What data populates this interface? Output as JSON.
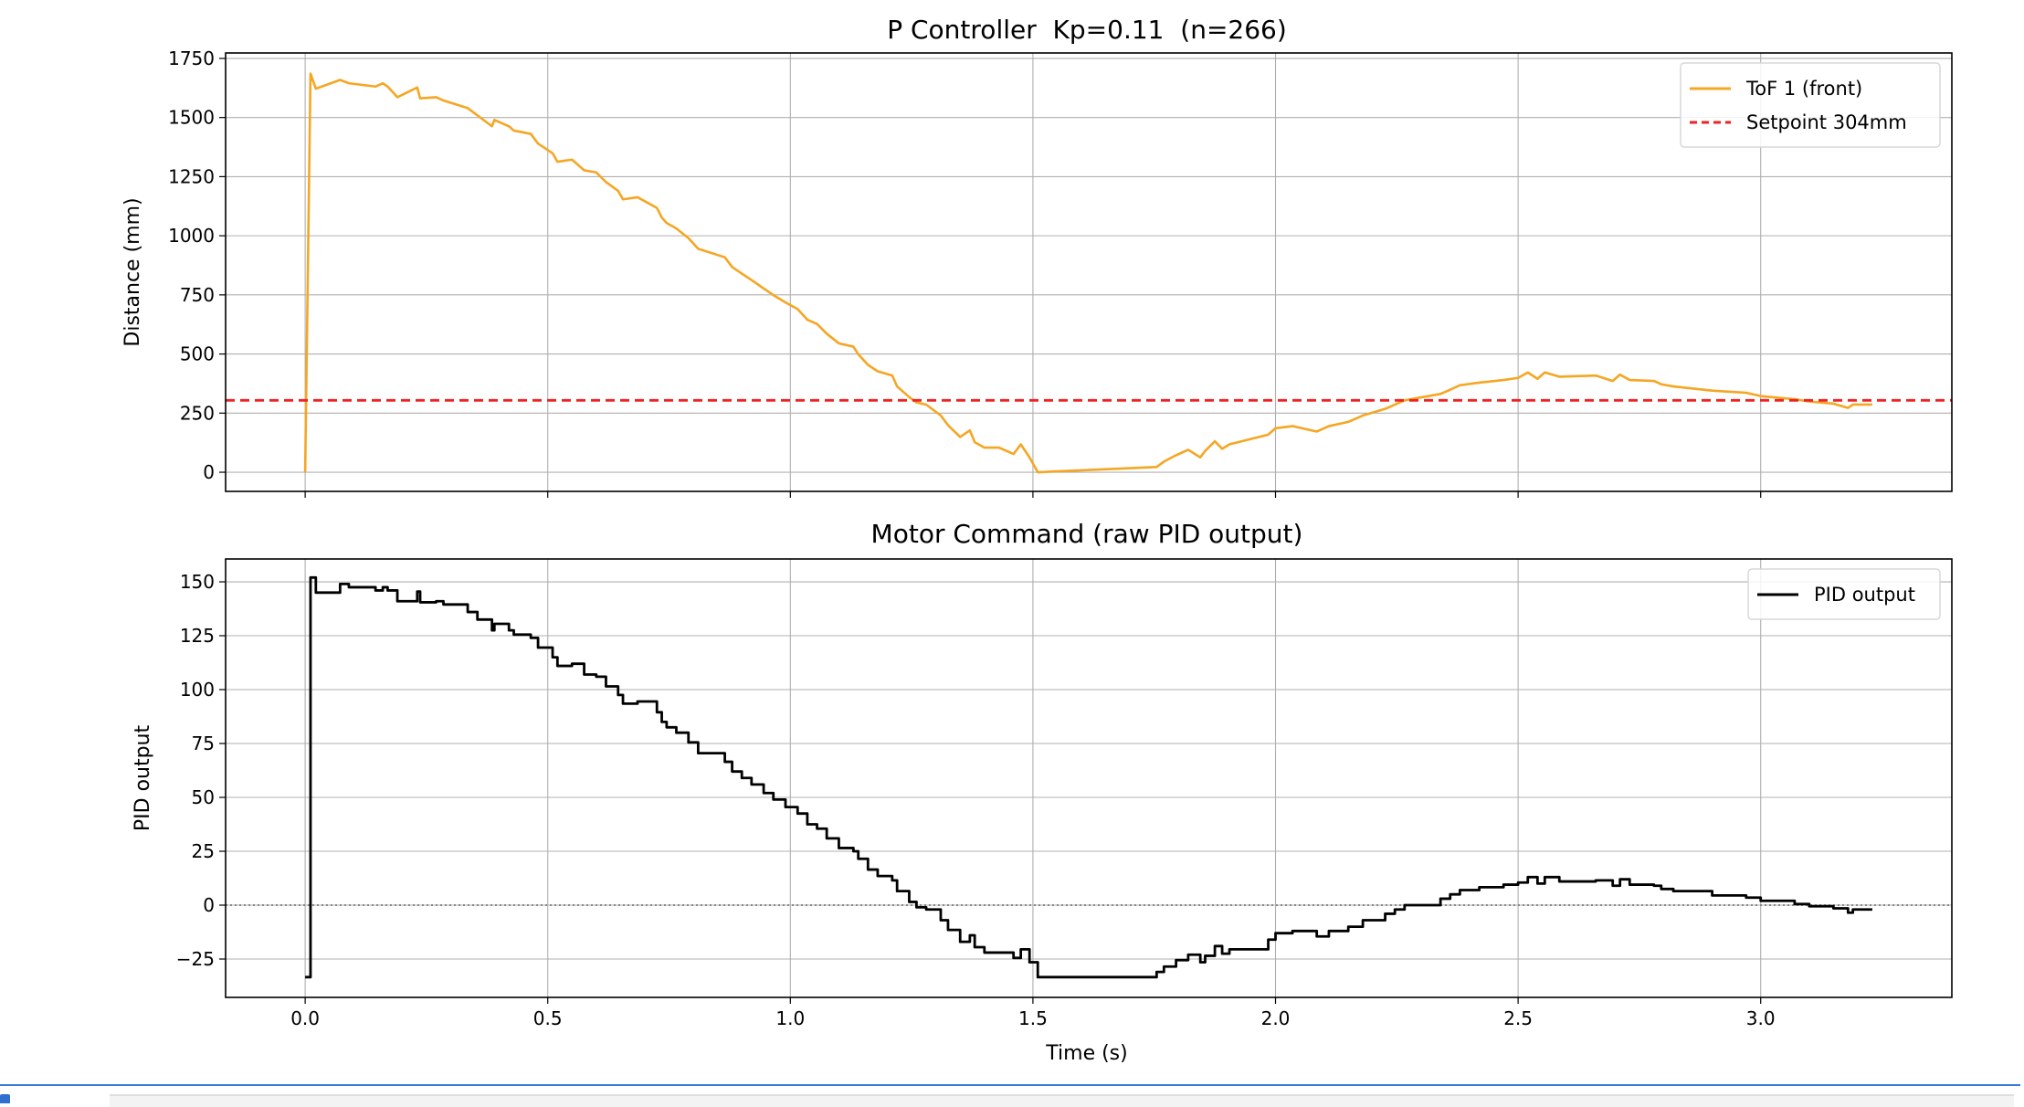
{
  "chart_data": [
    {
      "type": "line",
      "title": "P Controller  Kp=0.11  (n=266)",
      "xlabel": "",
      "ylabel": "Distance (mm)",
      "xlim": [
        -0.164,
        3.394
      ],
      "ylim": [
        -81,
        1773
      ],
      "yticks": [
        0,
        250,
        500,
        750,
        1000,
        1250,
        1500,
        1750
      ],
      "xticks": [
        0.0,
        0.5,
        1.0,
        1.5,
        2.0,
        2.5,
        3.0
      ],
      "show_xtick_labels": false,
      "grid": true,
      "legend": "top-right",
      "series": [
        {
          "name": "ToF 1 (front)",
          "color": "#f5a623",
          "style": "solid",
          "x": [
            0,
            0.011,
            0.022,
            0.072,
            0.09,
            0.145,
            0.16,
            0.17,
            0.19,
            0.231,
            0.237,
            0.27,
            0.285,
            0.335,
            0.355,
            0.385,
            0.39,
            0.42,
            0.43,
            0.465,
            0.48,
            0.51,
            0.52,
            0.55,
            0.575,
            0.6,
            0.62,
            0.645,
            0.655,
            0.685,
            0.725,
            0.735,
            0.745,
            0.765,
            0.79,
            0.81,
            0.865,
            0.88,
            0.9,
            0.92,
            0.945,
            0.965,
            0.99,
            1.015,
            1.035,
            1.055,
            1.075,
            1.1,
            1.13,
            1.14,
            1.16,
            1.18,
            1.21,
            1.22,
            1.245,
            1.26,
            1.28,
            1.31,
            1.325,
            1.35,
            1.37,
            1.38,
            1.4,
            1.43,
            1.46,
            1.475,
            1.493,
            1.51,
            1.755,
            1.77,
            1.795,
            1.82,
            1.845,
            1.855,
            1.875,
            1.89,
            1.905,
            1.985,
            2.0,
            2.035,
            2.085,
            2.11,
            2.15,
            2.18,
            2.226,
            2.246,
            2.266,
            2.34,
            2.36,
            2.38,
            2.42,
            2.47,
            2.5,
            2.52,
            2.54,
            2.555,
            2.585,
            2.66,
            2.695,
            2.71,
            2.73,
            2.78,
            2.795,
            2.82,
            2.9,
            2.97,
            3.0,
            3.07,
            3.1,
            3.15,
            3.18,
            3.19,
            3.23
          ],
          "y": [
            0,
            1686,
            1622,
            1659,
            1645,
            1631,
            1645,
            1631,
            1586,
            1627,
            1581,
            1586,
            1572,
            1540,
            1509,
            1463,
            1490,
            1463,
            1445,
            1431,
            1390,
            1349,
            1313,
            1322,
            1277,
            1268,
            1227,
            1190,
            1154,
            1163,
            1118,
            1077,
            1054,
            1031,
            990,
            945,
            909,
            868,
            840,
            813,
            777,
            749,
            718,
            690,
            645,
            627,
            586,
            545,
            531,
            499,
            454,
            427,
            409,
            363,
            318,
            295,
            286,
            240,
            199,
            149,
            177,
            127,
            104,
            104,
            77,
            118,
            63,
            0,
            22,
            45,
            72,
            95,
            63,
            90,
            131,
            99,
            118,
            159,
            186,
            195,
            172,
            195,
            213,
            240,
            268,
            286,
            304,
            331,
            349,
            368,
            379,
            390,
            399,
            422,
            395,
            422,
            404,
            409,
            386,
            413,
            390,
            386,
            372,
            363,
            345,
            336,
            322,
            309,
            299,
            290,
            272,
            286,
            286
          ]
        },
        {
          "name": "Setpoint 304mm",
          "color": "#ee2222",
          "style": "dashed",
          "y_constant": 304
        }
      ]
    },
    {
      "type": "line",
      "title": "Motor Command (raw PID output)",
      "xlabel": "Time (s)",
      "ylabel": "PID output",
      "xlim": [
        -0.164,
        3.394
      ],
      "ylim": [
        -42.8,
        160.6
      ],
      "yticks": [
        -25,
        0,
        25,
        50,
        75,
        100,
        125,
        150
      ],
      "xticks": [
        0.0,
        0.5,
        1.0,
        1.5,
        2.0,
        2.5,
        3.0
      ],
      "xtick_labels": [
        "0.0",
        "0.5",
        "1.0",
        "1.5",
        "2.0",
        "2.5",
        "3.0"
      ],
      "grid": true,
      "legend": "top-right",
      "zero_reference_line": {
        "y": 0,
        "color": "#888888",
        "style": "dotted"
      },
      "series": [
        {
          "name": "PID output",
          "color": "#000000",
          "style": "steps-post",
          "x": [
            0,
            0.011,
            0.022,
            0.072,
            0.09,
            0.145,
            0.16,
            0.17,
            0.19,
            0.231,
            0.237,
            0.27,
            0.285,
            0.335,
            0.355,
            0.385,
            0.39,
            0.42,
            0.43,
            0.465,
            0.48,
            0.51,
            0.52,
            0.55,
            0.575,
            0.6,
            0.62,
            0.645,
            0.655,
            0.685,
            0.725,
            0.735,
            0.745,
            0.765,
            0.79,
            0.81,
            0.865,
            0.88,
            0.9,
            0.92,
            0.945,
            0.965,
            0.99,
            1.015,
            1.035,
            1.055,
            1.075,
            1.1,
            1.13,
            1.14,
            1.16,
            1.18,
            1.21,
            1.22,
            1.245,
            1.26,
            1.28,
            1.31,
            1.325,
            1.35,
            1.37,
            1.38,
            1.4,
            1.43,
            1.46,
            1.475,
            1.493,
            1.51,
            1.755,
            1.77,
            1.795,
            1.82,
            1.845,
            1.855,
            1.875,
            1.89,
            1.905,
            1.985,
            2.0,
            2.035,
            2.085,
            2.11,
            2.15,
            2.18,
            2.226,
            2.246,
            2.266,
            2.34,
            2.36,
            2.38,
            2.42,
            2.47,
            2.5,
            2.52,
            2.54,
            2.555,
            2.585,
            2.66,
            2.695,
            2.71,
            2.73,
            2.78,
            2.795,
            2.82,
            2.9,
            2.97,
            3.0,
            3.07,
            3.1,
            3.15,
            3.18,
            3.19,
            3.23
          ],
          "y": [
            -33.4,
            152,
            145,
            149,
            147.5,
            146,
            147.5,
            146,
            141,
            145.5,
            140.5,
            141,
            139.5,
            136,
            132.5,
            127.5,
            130.5,
            127.5,
            125.5,
            124,
            119.5,
            115,
            111,
            112,
            107,
            106,
            101.5,
            97.5,
            93.5,
            94.5,
            89.5,
            85,
            82.5,
            80,
            75.5,
            70.5,
            66.5,
            62,
            59,
            56,
            52,
            49,
            45.5,
            42.5,
            37.5,
            35.5,
            31,
            26.5,
            25,
            21.5,
            16.5,
            13.5,
            11.5,
            6.5,
            1.5,
            -1,
            -2,
            -7,
            -11.5,
            -17,
            -14,
            -19.5,
            -22,
            -22,
            -24.5,
            -20.5,
            -26.5,
            -33.4,
            -31,
            -28.5,
            -25.5,
            -23,
            -26.5,
            -23.5,
            -19,
            -22.5,
            -20.5,
            -16,
            -13,
            -12,
            -14.5,
            -12,
            -10,
            -7,
            -4,
            -2,
            0,
            3,
            5,
            7,
            8.3,
            9.5,
            10.5,
            13,
            10,
            13,
            11,
            11.5,
            9,
            12,
            9.5,
            9,
            7.5,
            6.5,
            4.5,
            3.5,
            2,
            0.5,
            -0.5,
            -1.5,
            -3.5,
            -2,
            -2
          ]
        }
      ]
    }
  ]
}
